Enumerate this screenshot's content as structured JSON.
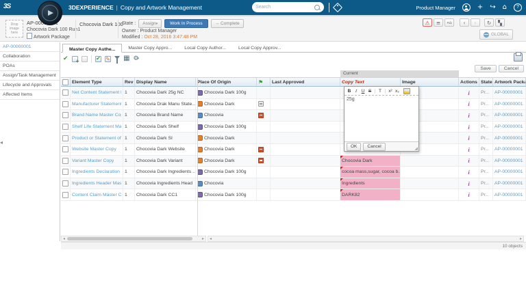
{
  "colors": {
    "topbar": "#0d5a88",
    "link_blue": "#5b9dc8",
    "state_active_blue": "#3e79b4",
    "modified_date_orange": "#e07a2c",
    "pink_cell": "#f3b1c8",
    "copy_text_header_red": "#c22200"
  },
  "icons": {
    "menu": "≡",
    "collapse": "«⌂",
    "back": "‹",
    "forward": "›",
    "refresh": "↻",
    "tree": "▚",
    "alert": "⚠",
    "plus": "+",
    "share": "↪",
    "home": "⌂",
    "help": "?",
    "check": "✔",
    "pencil": "✎",
    "grid": "▦",
    "gear": "⚙",
    "caret": "▾",
    "flag": "⚑",
    "resize": "◢",
    "collapse_handle": "◂",
    "scroll_left": "◂",
    "scroll_right": "▸",
    "info": "i"
  },
  "topbar": {
    "brand": "3DEXPERIENCE",
    "separator": "|",
    "app_title": "Copy and Artwork Management",
    "search_placeholder": "Search",
    "user_role": "Product Manager",
    "logo": "3S"
  },
  "header": {
    "drop_zone": "Drop image here",
    "id": "AP-00000001",
    "name": "Chocovia Dark 100 Run1",
    "type_label": "Artwork Package",
    "context_name": "Chocovia Dark 100",
    "state_label": "State :",
    "state_assign": "Assign",
    "state_current": "Work In Process",
    "state_complete": "Complete",
    "owner_label": "Owner :",
    "owner": "Product Manager",
    "modified_label": "Modified :",
    "modified": "Oct 28, 2016 3:47:48 PM",
    "global_button": "GLOBAL"
  },
  "sidebar": {
    "items": [
      "AP-00000001",
      "Collaboration",
      "POAs",
      "Assign/Task Management",
      "Lifecycle and Approvals",
      "Affected Items"
    ]
  },
  "tabs": [
    {
      "label": "Master Copy Authe...",
      "active": true
    },
    {
      "label": "Master Copy Appro...",
      "active": false
    },
    {
      "label": "Local Copy Author...",
      "active": false
    },
    {
      "label": "Local Copy Approv...",
      "active": false
    }
  ],
  "actions": {
    "save": "Save",
    "cancel": "Cancel"
  },
  "table": {
    "group_header": "Current",
    "columns": [
      {
        "key": "select",
        "label": ""
      },
      {
        "key": "element_type",
        "label": "Element Type"
      },
      {
        "key": "rev",
        "label": "Rev"
      },
      {
        "key": "display_name",
        "label": "Display Name"
      },
      {
        "key": "origin",
        "label": "Place Of Origin"
      },
      {
        "key": "flag",
        "label": ""
      },
      {
        "key": "last_approved",
        "label": "Last Approved"
      },
      {
        "key": "copy_text",
        "label": "Copy Text"
      },
      {
        "key": "image",
        "label": "Image"
      },
      {
        "key": "actions",
        "label": "Actions"
      },
      {
        "key": "state",
        "label": "State"
      },
      {
        "key": "package",
        "label": "Artwork Package"
      }
    ],
    "rows": [
      {
        "element_type": "Net Content Statement Master",
        "rev": "1",
        "display_name": "Chocovia Dark 25g NC",
        "origin": "Chocovia Dark 100g",
        "origin_type": "purple",
        "flag": null,
        "copy_text": "",
        "copy_pink": false,
        "edited": false,
        "state": "Pr...",
        "package": "AP-00000001"
      },
      {
        "element_type": "Manufacturer Statement Maste",
        "rev": "1",
        "display_name": "Chocovia Drak Manu State...",
        "origin": "Chocovia Dark",
        "origin_type": "orange",
        "flag": "gray",
        "copy_text": "",
        "copy_pink": false,
        "edited": false,
        "state": "Pr...",
        "package": "AP-00000001"
      },
      {
        "element_type": "Brand Name Master Copy",
        "rev": "1",
        "display_name": "Chocovia Brand Name",
        "origin": "Chocovia",
        "origin_type": "blue",
        "flag": "red",
        "copy_text": "",
        "copy_pink": false,
        "edited": false,
        "state": "Pr...",
        "package": "AP-00000001"
      },
      {
        "element_type": "Shelf Life Statement Master C",
        "rev": "1",
        "display_name": "Chocovia Dark Shelf",
        "origin": "Chocovia Dark 100g",
        "origin_type": "purple",
        "flag": null,
        "copy_text": "",
        "copy_pink": false,
        "edited": false,
        "state": "Pr...",
        "package": "AP-00000001"
      },
      {
        "element_type": "Product or Statement of Identit",
        "rev": "1",
        "display_name": "Chocovia Dark SI",
        "origin": "Chocovia Dark",
        "origin_type": "orange",
        "flag": null,
        "copy_text": "",
        "copy_pink": false,
        "edited": false,
        "state": "Pr...",
        "package": "AP-00000001"
      },
      {
        "element_type": "Website Master Copy",
        "rev": "1",
        "display_name": "Chocovia Dark Website",
        "origin": "Chocovia Dark",
        "origin_type": "orange",
        "flag": "red",
        "copy_text": "",
        "copy_pink": false,
        "edited": false,
        "state": "Pr...",
        "package": "AP-00000001"
      },
      {
        "element_type": "Variant Master Copy",
        "rev": "1",
        "display_name": "Chocovia Dark Variant",
        "origin": "Chocovia Dark",
        "origin_type": "orange",
        "flag": "red",
        "copy_text": "Chocovia Dark",
        "copy_pink": true,
        "edited": true,
        "state": "Pr...",
        "package": "AP-00000001"
      },
      {
        "element_type": "Ingredients Declaration Master",
        "rev": "1",
        "display_name": "Chocovia Dark Ingredients ...",
        "origin": "Chocovia Dark 100g",
        "origin_type": "purple",
        "flag": null,
        "copy_text": "cocoa mass,sugar, cocoa b...",
        "copy_pink": true,
        "edited": true,
        "state": "Pr...",
        "package": "AP-00000001"
      },
      {
        "element_type": "Ingredients Header Master Co",
        "rev": "1",
        "display_name": "Chocovia Ingredients Head",
        "origin": "Chocovia",
        "origin_type": "blue",
        "flag": null,
        "copy_text": "Ingredients",
        "copy_pink": true,
        "edited": true,
        "state": "Pr...",
        "package": "AP-00000001"
      },
      {
        "element_type": "Content Claim Master Copy",
        "rev": "1",
        "display_name": "Chocovia Dark CC1",
        "origin": "Chocovia Dark 100g",
        "origin_type": "purple",
        "flag": null,
        "copy_text": "DARK82",
        "copy_pink": true,
        "edited": true,
        "state": "Pr...",
        "package": "AP-00000001"
      }
    ],
    "footer": "10 objects"
  },
  "editor": {
    "toolbar": [
      "B",
      "I",
      "U",
      "S",
      "T",
      "x²",
      "x₂"
    ],
    "content": "25g",
    "ok": "OK",
    "cancel": "Cancel"
  }
}
